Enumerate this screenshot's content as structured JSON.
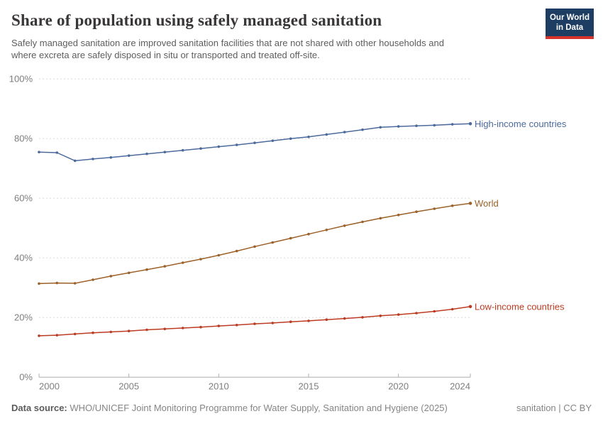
{
  "header": {
    "title": "Share of population using safely managed sanitation",
    "subtitle_lines": [
      "Safely managed sanitation are improved sanitation facilities that are not shared with other households and",
      "where excreta are safely disposed in situ or transported and treated off-site."
    ],
    "logo": {
      "line1": "Our World",
      "line2": "in Data",
      "bg_color": "#1D3D63",
      "bar_color": "#D7332A"
    }
  },
  "chart_data": {
    "type": "line",
    "title": "Share of population using safely managed sanitation",
    "x": [
      2000,
      2001,
      2002,
      2003,
      2004,
      2005,
      2006,
      2007,
      2008,
      2009,
      2010,
      2011,
      2012,
      2013,
      2014,
      2015,
      2016,
      2017,
      2018,
      2019,
      2020,
      2021,
      2022,
      2023,
      2024
    ],
    "series": [
      {
        "name": "High-income countries",
        "color": "#4C6A9C",
        "values": [
          75.5,
          75.3,
          72.6,
          73.2,
          73.7,
          74.3,
          74.9,
          75.5,
          76.1,
          76.7,
          77.3,
          77.9,
          78.6,
          79.3,
          80.0,
          80.6,
          81.4,
          82.2,
          83.0,
          83.8,
          84.1,
          84.3,
          84.5,
          84.8,
          85.0
        ]
      },
      {
        "name": "World",
        "color": "#9B6128",
        "values": [
          31.4,
          31.6,
          31.5,
          32.7,
          33.9,
          35.0,
          36.1,
          37.2,
          38.4,
          39.6,
          40.9,
          42.3,
          43.8,
          45.2,
          46.6,
          48.0,
          49.4,
          50.8,
          52.1,
          53.3,
          54.4,
          55.5,
          56.5,
          57.5,
          58.3
        ]
      },
      {
        "name": "Low-income countries",
        "color": "#BD3B23",
        "values": [
          13.9,
          14.1,
          14.5,
          14.9,
          15.2,
          15.5,
          15.9,
          16.2,
          16.5,
          16.8,
          17.2,
          17.5,
          17.9,
          18.2,
          18.6,
          18.9,
          19.3,
          19.7,
          20.1,
          20.6,
          21.0,
          21.5,
          22.1,
          22.8,
          23.7
        ]
      }
    ],
    "xlabel": "",
    "ylabel": "",
    "ylim": [
      0,
      100
    ],
    "yticks": [
      0,
      20,
      40,
      60,
      80,
      100
    ],
    "ytick_suffix": "%",
    "xticks": [
      2000,
      2005,
      2010,
      2015,
      2020,
      2024
    ],
    "grid": "horizontal-dashed",
    "legend_position": "end-of-line-labels",
    "axis_color": "#adadad",
    "grid_color": "#dcdcdc",
    "tick_label_color": "#7d7d7d"
  },
  "footer": {
    "source_label": "Data source:",
    "source_text": "WHO/UNICEF Joint Monitoring Programme for Water Supply, Sanitation and Hygiene (2025)",
    "license": "sanitation | CC BY"
  }
}
